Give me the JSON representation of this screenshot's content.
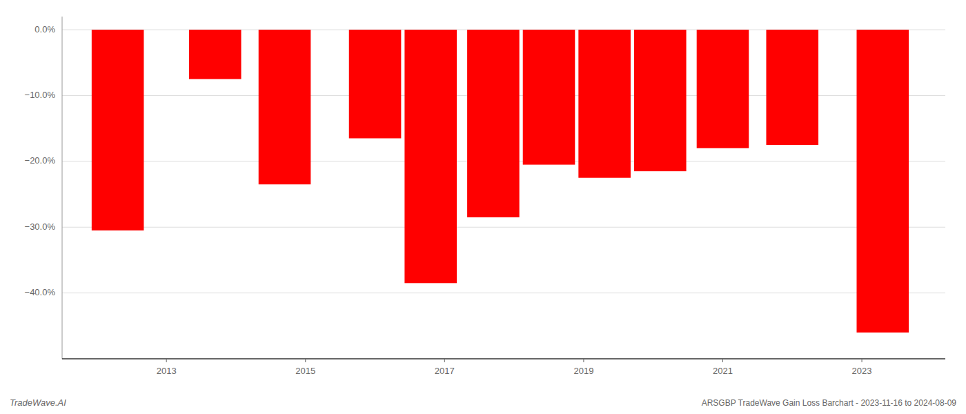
{
  "chart_data": {
    "type": "bar",
    "title": "ARSGBP TradeWave Gain Loss Barchart - 2023-11-16 to 2024-08-09",
    "annotations": [
      "TradeWave.AI"
    ],
    "x": [
      2012.3,
      2013.7,
      2014.7,
      2016.0,
      2016.8,
      2017.7,
      2018.5,
      2019.3,
      2020.1,
      2021.0,
      2022.0,
      2023.3
    ],
    "values": [
      -30.5,
      -7.5,
      -23.5,
      -16.5,
      -38.5,
      -28.5,
      -20.5,
      -22.5,
      -21.5,
      -18.0,
      -17.5,
      -46.0
    ],
    "color": "#ff0000",
    "xlim": [
      2011.5,
      2024.2
    ],
    "xticks": [
      2013,
      2015,
      2017,
      2019,
      2021,
      2023
    ],
    "ylim": [
      -50,
      2
    ],
    "yticks": [
      {
        "value": 0,
        "label": "0.0%"
      },
      {
        "value": -10,
        "label": "−10.0%"
      },
      {
        "value": -20,
        "label": "−20.0%"
      },
      {
        "value": -30,
        "label": "−30.0%"
      },
      {
        "value": -40,
        "label": "−40.0%"
      }
    ],
    "grid": true
  }
}
